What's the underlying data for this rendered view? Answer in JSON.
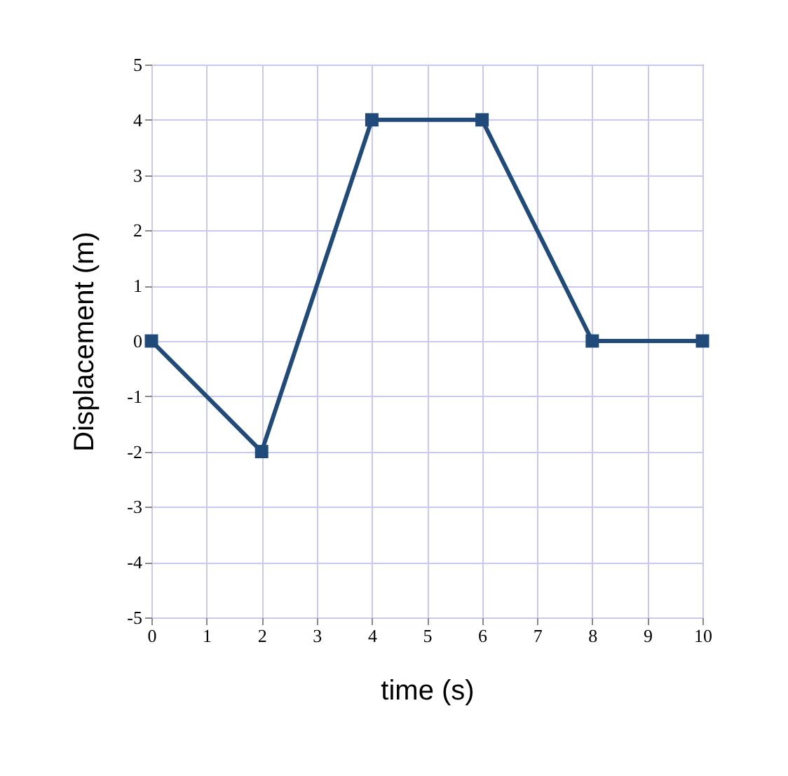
{
  "chart_data": {
    "type": "line",
    "xlabel": "time (s)",
    "ylabel": "Displacement (m)",
    "x": [
      0,
      2,
      4,
      6,
      8,
      10
    ],
    "series": [
      {
        "color": "#1f4a7a",
        "values": [
          0,
          -2,
          4,
          4,
          0,
          0
        ]
      }
    ],
    "xlim": [
      0,
      10
    ],
    "xticks": [
      0,
      1,
      2,
      3,
      4,
      5,
      6,
      7,
      8,
      9,
      10
    ],
    "ylim": [
      -5,
      5
    ],
    "yticks": [
      -5,
      -4,
      -3,
      -2,
      -1,
      0,
      1,
      2,
      3,
      4,
      5
    ],
    "grid": true,
    "marker": "square",
    "line_style": "solid"
  }
}
